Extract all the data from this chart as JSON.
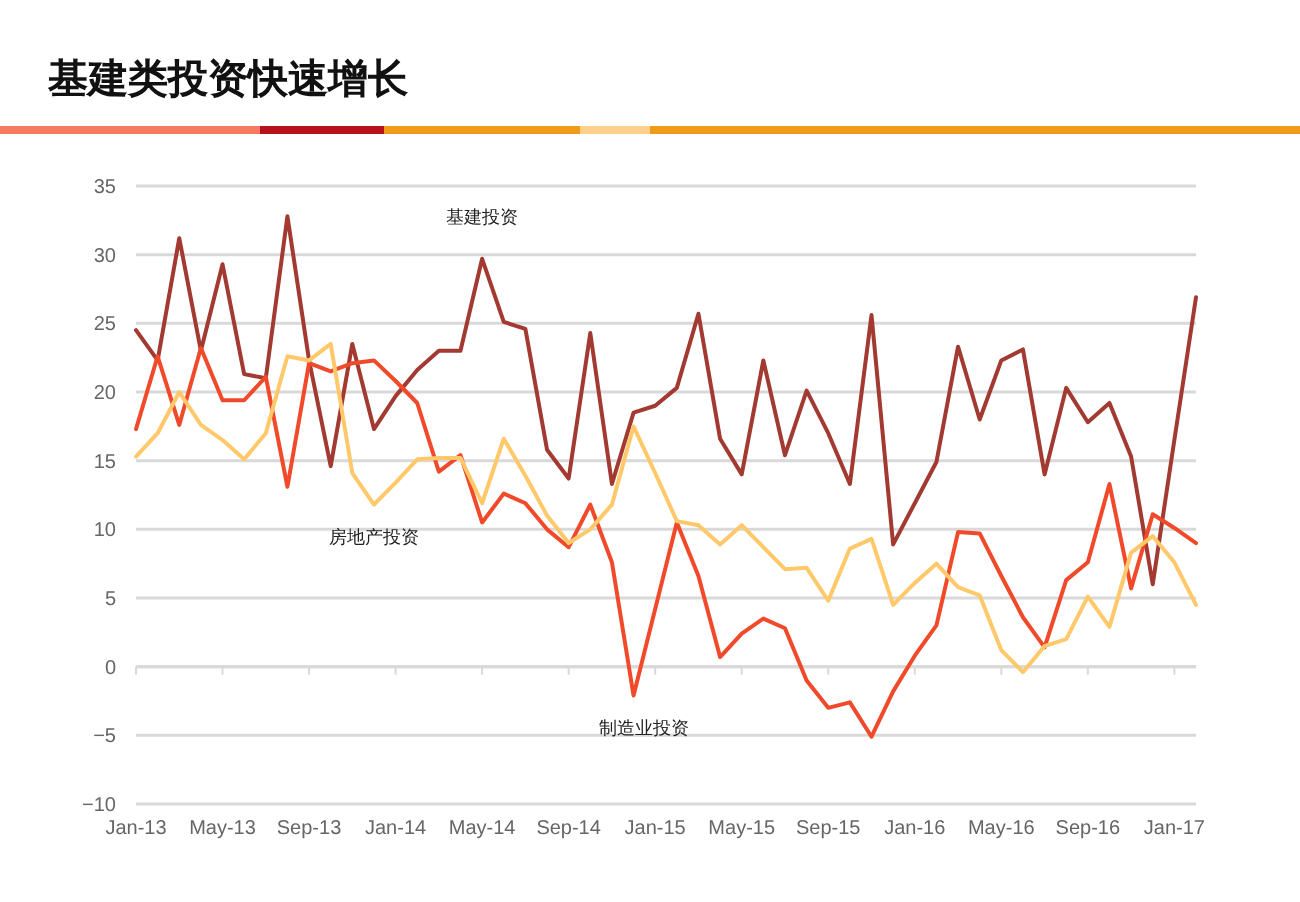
{
  "chart_data": {
    "type": "line",
    "title": "基建类投资快速增长",
    "x": [
      "2013-01",
      "2013-02",
      "2013-03",
      "2013-04",
      "2013-05",
      "2013-06",
      "2013-07",
      "2013-08",
      "2013-09",
      "2013-10",
      "2013-11",
      "2013-12",
      "2014-01",
      "2014-02",
      "2014-03",
      "2014-04",
      "2014-05",
      "2014-06",
      "2014-07",
      "2014-08",
      "2014-09",
      "2014-10",
      "2014-11",
      "2014-12",
      "2015-01",
      "2015-02",
      "2015-03",
      "2015-04",
      "2015-05",
      "2015-06",
      "2015-07",
      "2015-08",
      "2015-09",
      "2015-10",
      "2015-11",
      "2015-12",
      "2016-01",
      "2016-02",
      "2016-03",
      "2016-04",
      "2016-05",
      "2016-06",
      "2016-07",
      "2016-08",
      "2016-09",
      "2016-10",
      "2016-11",
      "2016-12",
      "2017-01",
      "2017-02"
    ],
    "series": [
      {
        "name": "基建投资",
        "color": "#a33a32",
        "values": [
          24.5,
          22.3,
          31.2,
          23,
          29.3,
          21.3,
          21,
          32.8,
          22.3,
          14.6,
          23.5,
          17.3,
          19.7,
          21.6,
          23,
          23,
          29.7,
          25.1,
          24.6,
          15.8,
          13.7,
          24.3,
          13.3,
          18.5,
          19,
          20.3,
          25.7,
          16.6,
          14.0,
          22.3,
          15.4,
          20.1,
          17.0,
          13.3,
          25.6,
          8.9,
          11.9,
          14.9,
          23.3,
          18.0,
          22.3,
          23.1,
          14.0,
          20.3,
          17.8,
          19.2,
          15.3,
          6.0,
          16.5,
          26.9
        ]
      },
      {
        "name": "制造业投资",
        "color": "#f04a2a",
        "values": [
          17.3,
          22.6,
          17.6,
          23.2,
          19.4,
          19.4,
          21.1,
          13.1,
          22.1,
          21.5,
          22.1,
          22.3,
          20.8,
          19.2,
          14.2,
          15.4,
          10.5,
          12.6,
          11.9,
          10.0,
          8.7,
          11.8,
          7.6,
          -2.1,
          4.2,
          10.5,
          6.6,
          0.7,
          2.4,
          3.5,
          2.8,
          -1.0,
          -3.0,
          -2.6,
          -5.1,
          -1.8,
          0.8,
          3.0,
          9.8,
          9.7,
          6.6,
          3.6,
          1.4,
          6.3,
          7.6,
          13.3,
          5.7,
          11.1,
          10.1,
          9.0
        ]
      },
      {
        "name": "房地产投资",
        "color": "#ffc96b",
        "values": [
          15.3,
          17.0,
          20.0,
          17.6,
          16.5,
          15.1,
          17.0,
          22.6,
          22.3,
          23.5,
          14.1,
          11.8,
          13.4,
          15.1,
          15.2,
          15.2,
          11.9,
          16.6,
          13.9,
          11.0,
          9.0,
          10.0,
          11.8,
          17.5,
          14.1,
          10.6,
          10.3,
          8.9,
          10.3,
          8.7,
          7.1,
          7.2,
          4.8,
          8.6,
          9.3,
          4.5,
          6.1,
          7.5,
          5.8,
          5.2,
          1.2,
          -0.4,
          1.5,
          2.0,
          5.1,
          2.9,
          8.3,
          9.5,
          7.6,
          4.5
        ]
      }
    ],
    "xlim": [
      "2013-01",
      "2017-02"
    ],
    "xticks": [
      {
        "value": "2013-01",
        "label": "Jan-13"
      },
      {
        "value": "2013-05",
        "label": "May-13"
      },
      {
        "value": "2013-09",
        "label": "Sep-13"
      },
      {
        "value": "2014-01",
        "label": "Jan-14"
      },
      {
        "value": "2014-05",
        "label": "May-14"
      },
      {
        "value": "2014-09",
        "label": "Sep-14"
      },
      {
        "value": "2015-01",
        "label": "Jan-15"
      },
      {
        "value": "2015-05",
        "label": "May-15"
      },
      {
        "value": "2015-09",
        "label": "Sep-15"
      },
      {
        "value": "2016-01",
        "label": "Jan-16"
      },
      {
        "value": "2016-05",
        "label": "May-16"
      },
      {
        "value": "2016-09",
        "label": "Sep-16"
      },
      {
        "value": "2017-01",
        "label": "Jan-17"
      }
    ],
    "ylim": [
      -10,
      35
    ],
    "yticks": [
      -10,
      -5,
      0,
      5,
      10,
      15,
      20,
      25,
      30,
      35
    ],
    "grid": "y",
    "marker": "none",
    "line_style": "solid"
  }
}
